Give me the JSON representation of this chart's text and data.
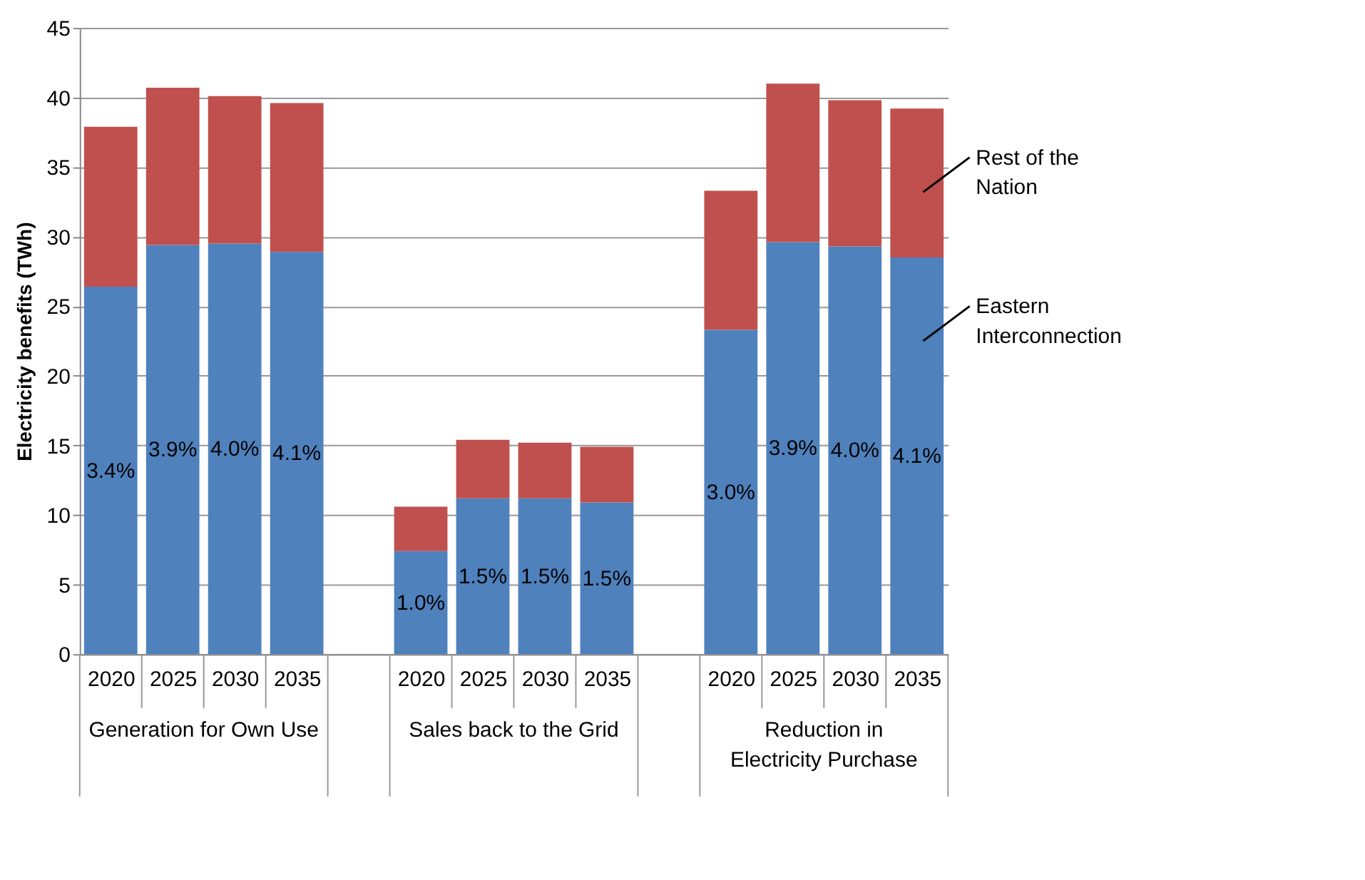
{
  "chart_data": {
    "type": "bar",
    "stacked": true,
    "ylabel": "Electricity benefits (TWh)",
    "categories": [
      "2020",
      "2025",
      "2030",
      "2035",
      null,
      "2020",
      "2025",
      "2030",
      "2035",
      null,
      "2020",
      "2025",
      "2030",
      "2035"
    ],
    "series": [
      {
        "name": "Eastern Interconnection",
        "color": "#4f81bd",
        "values": [
          26.4,
          29.4,
          29.5,
          28.9,
          null,
          7.4,
          11.2,
          11.2,
          10.9,
          null,
          23.3,
          29.6,
          29.3,
          28.5
        ]
      },
      {
        "name": "Rest of the Nation",
        "color": "#c0504d",
        "values": [
          11.5,
          11.3,
          10.6,
          10.7,
          null,
          3.2,
          4.2,
          4.0,
          4.0,
          null,
          10.0,
          11.4,
          10.5,
          10.7
        ]
      }
    ],
    "annotations": [
      "Generation for Own Use",
      "Sales back to the Grid",
      "Reduction in\nElectricity Purchase",
      "3.4%",
      "3.9%",
      "4.0%",
      "4.1%",
      "1.0%",
      "1.5%",
      "1.5%",
      "1.5%",
      "3.0%",
      "3.9%",
      "4.0%",
      "4.1%"
    ],
    "ylim": [
      0,
      45
    ],
    "yticks": [
      0,
      5,
      10,
      15,
      20,
      25,
      30,
      35,
      40,
      45
    ],
    "grid": "y",
    "legend": false
  }
}
